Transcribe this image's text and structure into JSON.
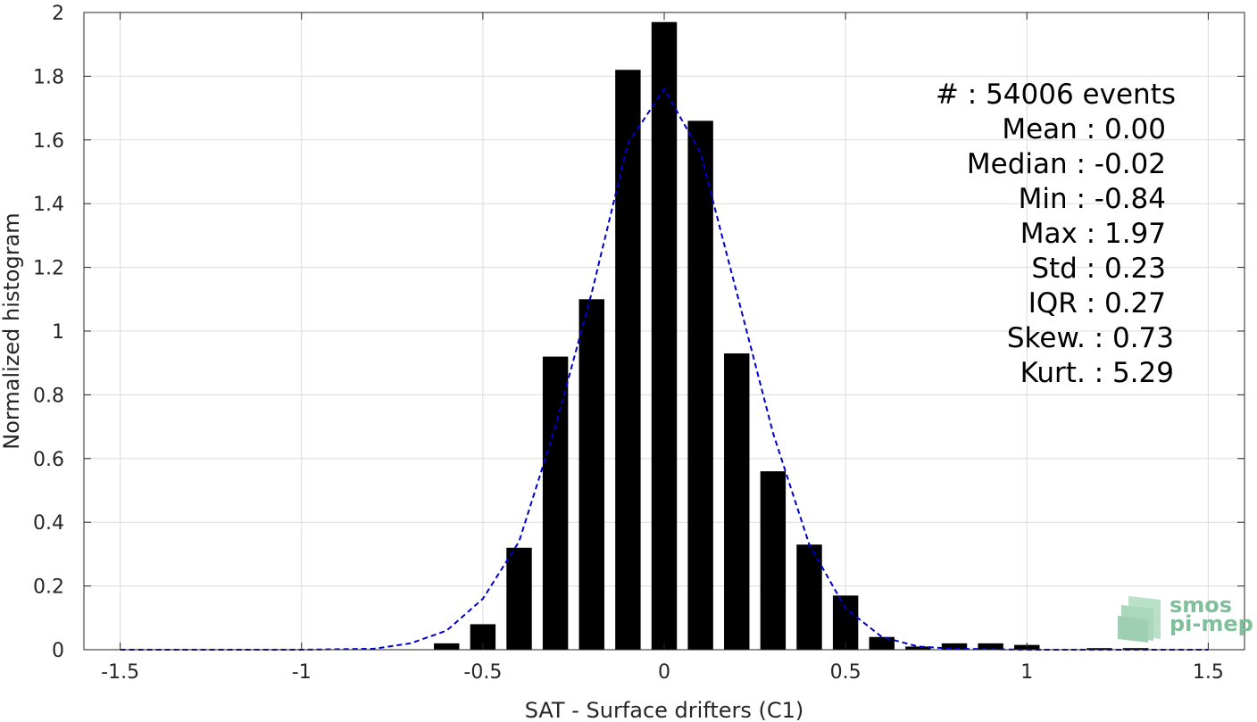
{
  "chart_data": {
    "type": "bar",
    "xlabel": "SAT - Surface drifters (C1)",
    "ylabel": "Normalized histogram",
    "xlim": [
      -1.5,
      1.5
    ],
    "ylim": [
      0,
      2
    ],
    "grid": true,
    "xticks": [
      -1.5,
      -1,
      -0.5,
      0,
      0.5,
      1,
      1.5
    ],
    "xtick_labels": [
      "-1.5",
      "-1",
      "-0.5",
      "0",
      "0.5",
      "1",
      "1.5"
    ],
    "yticks": [
      0,
      0.2,
      0.4,
      0.6,
      0.8,
      1,
      1.2,
      1.4,
      1.6,
      1.8,
      2
    ],
    "ytick_labels": [
      "0",
      "0.2",
      "0.4",
      "0.6",
      "0.8",
      "1",
      "1.2",
      "1.4",
      "1.6",
      "1.8",
      "2"
    ],
    "bar_color": "#000000",
    "bar_width": 0.07,
    "bins": [
      {
        "x": -0.6,
        "y": 0.02
      },
      {
        "x": -0.5,
        "y": 0.08
      },
      {
        "x": -0.4,
        "y": 0.32
      },
      {
        "x": -0.3,
        "y": 0.92
      },
      {
        "x": -0.2,
        "y": 1.1
      },
      {
        "x": -0.1,
        "y": 1.82
      },
      {
        "x": 0.0,
        "y": 1.97
      },
      {
        "x": 0.1,
        "y": 1.66
      },
      {
        "x": 0.2,
        "y": 0.93
      },
      {
        "x": 0.3,
        "y": 0.56
      },
      {
        "x": 0.4,
        "y": 0.33
      },
      {
        "x": 0.5,
        "y": 0.17
      },
      {
        "x": 0.6,
        "y": 0.04
      },
      {
        "x": 0.7,
        "y": 0.01
      },
      {
        "x": 0.8,
        "y": 0.02
      },
      {
        "x": 0.9,
        "y": 0.02
      },
      {
        "x": 1.0,
        "y": 0.015
      },
      {
        "x": 1.2,
        "y": 0.005
      },
      {
        "x": 1.3,
        "y": 0.005
      }
    ],
    "fit_curve": {
      "color": "#0000cc",
      "style": "dashed",
      "x": [
        -1.5,
        -1.2,
        -1.0,
        -0.8,
        -0.7,
        -0.6,
        -0.5,
        -0.4,
        -0.3,
        -0.2,
        -0.1,
        0.0,
        0.1,
        0.2,
        0.3,
        0.4,
        0.5,
        0.6,
        0.7,
        0.8,
        1.0,
        1.2,
        1.5
      ],
      "y": [
        0,
        0,
        0,
        0.003,
        0.02,
        0.06,
        0.16,
        0.34,
        0.7,
        1.12,
        1.59,
        1.76,
        1.56,
        1.12,
        0.68,
        0.33,
        0.13,
        0.04,
        0.01,
        0.003,
        0,
        0,
        0
      ]
    }
  },
  "stats": [
    {
      "text": "#  : 54006 events",
      "anchor_x": 1317
    },
    {
      "text": "Mean : 0.00",
      "anchor_x": 1306
    },
    {
      "text": "Median : -0.02",
      "anchor_x": 1306
    },
    {
      "text": "Min : -0.84",
      "anchor_x": 1306
    },
    {
      "text": "Max : 1.97",
      "anchor_x": 1306
    },
    {
      "text": "Std : 0.23",
      "anchor_x": 1306
    },
    {
      "text": "IQR : 0.27",
      "anchor_x": 1306
    },
    {
      "text": "Skew. : 0.73",
      "anchor_x": 1315
    },
    {
      "text": "Kurt. : 5.29",
      "anchor_x": 1315
    }
  ],
  "logo": {
    "line1": "smos",
    "line2": "pi-mep",
    "color": "#7fbf9a"
  }
}
